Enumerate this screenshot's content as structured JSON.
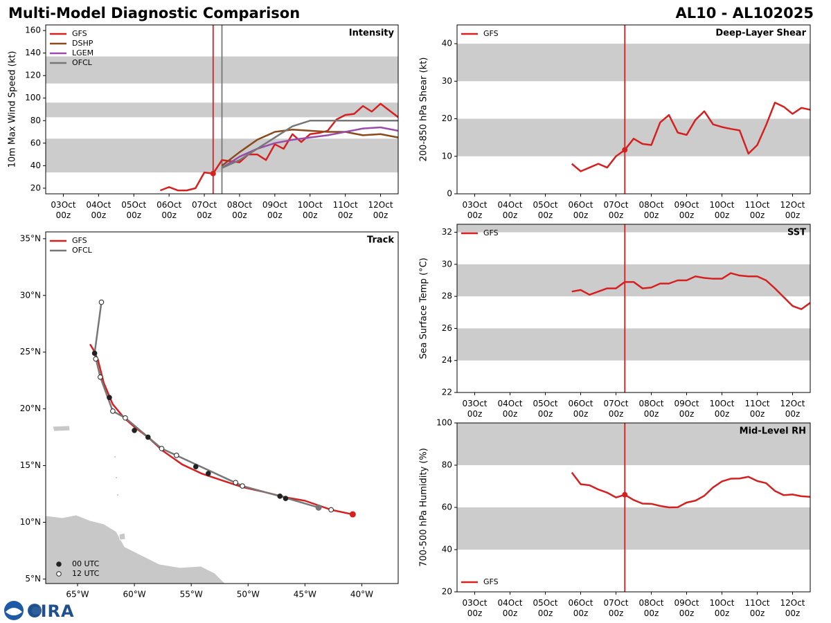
{
  "header": {
    "title": "Multi-Model Diagnostic Comparison",
    "storm": "AL10 - AL102025",
    "logo": "CIRA"
  },
  "chart_data": [
    {
      "type": "line",
      "annotation": "Intensity",
      "ylabel": "10m Max Wind Speed (kt)",
      "xlim": [
        "02Oct 12z",
        "12Oct 12z"
      ],
      "xticks": [
        "03Oct 00z",
        "04Oct 00z",
        "05Oct 00z",
        "06Oct 00z",
        "07Oct 00z",
        "08Oct 00z",
        "09Oct 00z",
        "10Oct 00z",
        "11Oct 00z",
        "12Oct 00z"
      ],
      "ylim": [
        15,
        165
      ],
      "yticks": [
        20,
        40,
        60,
        80,
        100,
        120,
        140,
        160
      ],
      "bands": [
        [
          34,
          64
        ],
        [
          83,
          96
        ],
        [
          113,
          137
        ]
      ],
      "band_color": "#cccccc",
      "vlines": [
        {
          "x": "07Oct 06z",
          "color": "#d62020"
        },
        {
          "x": "07Oct 12z",
          "color": "#777777"
        }
      ],
      "init_marker": true,
      "legend": "upper left",
      "series": [
        {
          "name": "GFS",
          "color": "#d62020",
          "x": [
            "05Oct 18z",
            "06Oct 00z",
            "06Oct 06z",
            "06Oct 12z",
            "06Oct 18z",
            "07Oct 00z",
            "07Oct 06z",
            "07Oct 12z",
            "07Oct 18z",
            "08Oct 00z",
            "08Oct 06z",
            "08Oct 12z",
            "08Oct 18z",
            "09Oct 00z",
            "09Oct 06z",
            "09Oct 12z",
            "09Oct 18z",
            "10Oct 00z",
            "10Oct 06z",
            "10Oct 12z",
            "10Oct 18z",
            "11Oct 00z",
            "11Oct 06z",
            "11Oct 12z",
            "11Oct 18z",
            "12Oct 00z",
            "12Oct 06z",
            "12Oct 12z"
          ],
          "values": [
            18,
            21,
            18,
            18,
            20,
            34,
            33,
            45,
            44,
            43,
            50,
            50,
            45,
            59,
            55,
            68,
            61,
            68,
            69,
            71,
            81,
            85,
            86,
            93,
            88,
            95,
            89,
            83
          ]
        },
        {
          "name": "DSHP",
          "color": "#8b4a1c",
          "x": [
            "07Oct 12z",
            "08Oct 00z",
            "08Oct 12z",
            "09Oct 00z",
            "09Oct 12z",
            "10Oct 00z",
            "10Oct 12z",
            "11Oct 00z",
            "11Oct 12z",
            "12Oct 00z",
            "12Oct 12z"
          ],
          "values": [
            40,
            52,
            63,
            70,
            72,
            71,
            70,
            70,
            67,
            68,
            65
          ]
        },
        {
          "name": "LGEM",
          "color": "#9a4ca8",
          "x": [
            "07Oct 12z",
            "08Oct 00z",
            "08Oct 12z",
            "09Oct 00z",
            "09Oct 12z",
            "10Oct 00z",
            "10Oct 12z",
            "11Oct 00z",
            "11Oct 12z",
            "12Oct 00z",
            "12Oct 12z"
          ],
          "values": [
            38,
            48,
            55,
            60,
            63,
            65,
            67,
            70,
            73,
            74,
            71
          ]
        },
        {
          "name": "OFCL",
          "color": "#777777",
          "x": [
            "07Oct 12z",
            "08Oct 00z",
            "08Oct 12z",
            "09Oct 00z",
            "09Oct 12z",
            "10Oct 00z",
            "10Oct 12z",
            "11Oct 00z",
            "11Oct 12z",
            "12Oct 00z",
            "12Oct 12z"
          ],
          "values": [
            38,
            45,
            55,
            65,
            75,
            80,
            80,
            80,
            80,
            80,
            80
          ]
        }
      ]
    },
    {
      "type": "track",
      "annotation": "Track",
      "xlim": [
        -67.8,
        -36.8
      ],
      "xticks": [
        {
          "value": -65,
          "label": "65°W"
        },
        {
          "value": -60,
          "label": "60°W"
        },
        {
          "value": -55,
          "label": "55°W"
        },
        {
          "value": -50,
          "label": "50°W"
        },
        {
          "value": -45,
          "label": "45°W"
        },
        {
          "value": -40,
          "label": "40°W"
        }
      ],
      "ylim": [
        4.6,
        35.6
      ],
      "yticks": [
        {
          "value": 5,
          "label": "5°N"
        },
        {
          "value": 10,
          "label": "10°N"
        },
        {
          "value": 15,
          "label": "15°N"
        },
        {
          "value": 20,
          "label": "20°N"
        },
        {
          "value": 25,
          "label": "25°N"
        },
        {
          "value": 30,
          "label": "30°N"
        },
        {
          "value": 35,
          "label": "35°N"
        }
      ],
      "legend": "upper left",
      "marker_legend": "lower left",
      "land_color": "#c8c8c8",
      "series": [
        {
          "name": "GFS",
          "color": "#d62020",
          "lon": [
            -40.8,
            -42.7,
            -45.0,
            -46.7,
            -48.7,
            -50.5,
            -52.3,
            -54.1,
            -55.8,
            -57.5,
            -58.8,
            -60.0,
            -60.9,
            -61.9,
            -62.7,
            -63.2,
            -63.6,
            -63.9
          ],
          "lat": [
            10.7,
            11.1,
            11.9,
            12.2,
            12.7,
            13.1,
            13.7,
            14.3,
            15.1,
            16.3,
            17.5,
            18.4,
            19.2,
            20.4,
            22.3,
            24.3,
            25.2,
            25.7
          ]
        },
        {
          "name": "OFCL",
          "color": "#777777",
          "lon": [
            -43.8,
            -47.2,
            -50.5,
            -56.3,
            -57.6,
            -60.8,
            -61.9,
            -63.0,
            -63.5,
            -62.9
          ],
          "lat": [
            11.3,
            12.3,
            13.2,
            15.9,
            16.5,
            19.2,
            19.8,
            22.8,
            24.9,
            29.4
          ]
        }
      ],
      "markers": [
        {
          "name": "00 UTC",
          "color": "#222222",
          "fill": "#222222",
          "lon": [
            -63.5,
            -62.2,
            -60.0,
            -58.8,
            -54.6,
            -53.5,
            -47.2,
            -46.7
          ],
          "lat": [
            24.9,
            21.0,
            18.1,
            17.5,
            14.9,
            14.3,
            12.3,
            12.1
          ]
        },
        {
          "name": "12 UTC",
          "color": "#222222",
          "fill": "#ffffff",
          "lon": [
            -62.9,
            -63.4,
            -63.0,
            -61.9,
            -60.8,
            -57.6,
            -56.3,
            -51.1,
            -50.5,
            -42.7
          ],
          "lat": [
            29.4,
            24.4,
            22.8,
            19.8,
            19.2,
            16.5,
            15.9,
            13.5,
            13.2,
            11.1
          ]
        }
      ]
    },
    {
      "type": "line",
      "annotation": "Deep-Layer Shear",
      "ylabel": "200-850 hPa Shear (kt)",
      "xlim": [
        "02Oct 12z",
        "12Oct 12z"
      ],
      "xticks": [
        "03Oct 00z",
        "04Oct 00z",
        "05Oct 00z",
        "06Oct 00z",
        "07Oct 00z",
        "08Oct 00z",
        "09Oct 00z",
        "10Oct 00z",
        "11Oct 00z",
        "12Oct 00z"
      ],
      "ylim": [
        0,
        45
      ],
      "yticks": [
        0,
        10,
        20,
        30,
        40
      ],
      "bands": [
        [
          10,
          20
        ],
        [
          30,
          40
        ]
      ],
      "band_color": "#cccccc",
      "vlines": [
        {
          "x": "07Oct 06z",
          "color": "#d62020"
        }
      ],
      "init_marker": true,
      "legend": "upper left",
      "series": [
        {
          "name": "GFS",
          "color": "#d62020",
          "x": [
            "05Oct 18z",
            "06Oct 00z",
            "06Oct 06z",
            "06Oct 12z",
            "06Oct 18z",
            "07Oct 00z",
            "07Oct 06z",
            "07Oct 12z",
            "07Oct 18z",
            "08Oct 00z",
            "08Oct 06z",
            "08Oct 12z",
            "08Oct 18z",
            "09Oct 00z",
            "09Oct 06z",
            "09Oct 12z",
            "09Oct 18z",
            "10Oct 00z",
            "10Oct 06z",
            "10Oct 12z",
            "10Oct 18z",
            "11Oct 00z",
            "11Oct 06z",
            "11Oct 12z",
            "11Oct 18z",
            "12Oct 00z",
            "12Oct 06z",
            "12Oct 12z"
          ],
          "values": [
            8,
            6,
            7,
            8,
            7,
            10,
            11.7,
            14.7,
            13.3,
            13,
            19,
            21,
            16.3,
            15.7,
            19.7,
            22,
            18.5,
            17.8,
            17.3,
            16.9,
            10.7,
            13,
            18.3,
            24.3,
            23.2,
            21.3,
            22.9,
            22.4
          ]
        }
      ]
    },
    {
      "type": "line",
      "annotation": "SST",
      "ylabel": "Sea Surface Temp (°C)",
      "xlim": [
        "02Oct 12z",
        "12Oct 12z"
      ],
      "xticks": [
        "03Oct 00z",
        "04Oct 00z",
        "05Oct 00z",
        "06Oct 00z",
        "07Oct 00z",
        "08Oct 00z",
        "09Oct 00z",
        "10Oct 00z",
        "11Oct 00z",
        "12Oct 00z"
      ],
      "ylim": [
        22,
        32.5
      ],
      "yticks": [
        22,
        24,
        26,
        28,
        30,
        32
      ],
      "bands": [
        [
          24,
          26
        ],
        [
          28,
          30
        ],
        [
          32,
          34
        ]
      ],
      "band_color": "#cccccc",
      "vlines": [
        {
          "x": "07Oct 06z",
          "color": "#d62020"
        }
      ],
      "init_marker": false,
      "legend": "upper left",
      "series": [
        {
          "name": "GFS",
          "color": "#d62020",
          "x": [
            "05Oct 18z",
            "06Oct 00z",
            "06Oct 06z",
            "06Oct 12z",
            "06Oct 18z",
            "07Oct 00z",
            "07Oct 06z",
            "07Oct 12z",
            "07Oct 18z",
            "08Oct 00z",
            "08Oct 06z",
            "08Oct 12z",
            "08Oct 18z",
            "09Oct 00z",
            "09Oct 06z",
            "09Oct 12z",
            "09Oct 18z",
            "10Oct 00z",
            "10Oct 06z",
            "10Oct 12z",
            "10Oct 18z",
            "11Oct 00z",
            "11Oct 06z",
            "11Oct 12z",
            "11Oct 18z",
            "12Oct 00z",
            "12Oct 06z",
            "12Oct 12z"
          ],
          "values": [
            28.3,
            28.4,
            28.1,
            28.3,
            28.5,
            28.5,
            28.9,
            28.9,
            28.5,
            28.55,
            28.8,
            28.8,
            29.0,
            29.0,
            29.25,
            29.15,
            29.1,
            29.1,
            29.45,
            29.3,
            29.25,
            29.25,
            29.0,
            28.5,
            27.95,
            27.4,
            27.2,
            27.6
          ]
        }
      ]
    },
    {
      "type": "line",
      "annotation": "Mid-Level RH",
      "ylabel": "700-500 hPa Humidity (%)",
      "xlim": [
        "02Oct 12z",
        "12Oct 12z"
      ],
      "xticks": [
        "03Oct 00z",
        "04Oct 00z",
        "05Oct 00z",
        "06Oct 00z",
        "07Oct 00z",
        "08Oct 00z",
        "09Oct 00z",
        "10Oct 00z",
        "11Oct 00z",
        "12Oct 00z"
      ],
      "ylim": [
        20,
        100
      ],
      "yticks": [
        20,
        40,
        60,
        80,
        100
      ],
      "bands": [
        [
          40,
          60
        ],
        [
          80,
          100
        ]
      ],
      "band_color": "#cccccc",
      "vlines": [
        {
          "x": "07Oct 06z",
          "color": "#d62020"
        }
      ],
      "init_marker": true,
      "legend": "lower left",
      "series": [
        {
          "name": "GFS",
          "color": "#d62020",
          "x": [
            "05Oct 18z",
            "06Oct 00z",
            "06Oct 06z",
            "06Oct 12z",
            "06Oct 18z",
            "07Oct 00z",
            "07Oct 06z",
            "07Oct 12z",
            "07Oct 18z",
            "08Oct 00z",
            "08Oct 06z",
            "08Oct 12z",
            "08Oct 18z",
            "09Oct 00z",
            "09Oct 06z",
            "09Oct 12z",
            "09Oct 18z",
            "10Oct 00z",
            "10Oct 06z",
            "10Oct 12z",
            "10Oct 18z",
            "11Oct 00z",
            "11Oct 06z",
            "11Oct 12z",
            "11Oct 18z",
            "12Oct 00z",
            "12Oct 06z",
            "12Oct 12z"
          ],
          "values": [
            76.5,
            71,
            70.5,
            68.5,
            67,
            64.7,
            66,
            63.5,
            61.8,
            61.7,
            60.7,
            60,
            60.1,
            62.3,
            63.2,
            65.5,
            69.5,
            72.3,
            73.6,
            73.7,
            74.5,
            72.5,
            71.5,
            67.8,
            65.8,
            66.1,
            65.3,
            65
          ]
        }
      ]
    }
  ]
}
